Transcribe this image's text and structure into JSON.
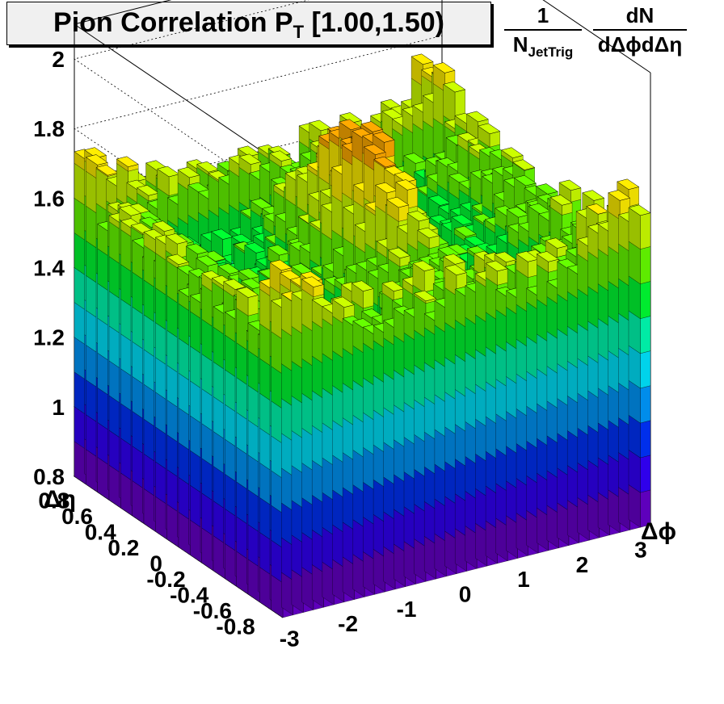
{
  "title": {
    "main": "Pion Correlation P",
    "sub": "T",
    "range": "[1.00,1.50)"
  },
  "zaxis_label": {
    "frac1_num": "1",
    "frac1_den_main": "N",
    "frac1_den_sub": "JetTrig",
    "frac2_num": "dN",
    "frac2_den": "dΔϕdΔη"
  },
  "chart_data": {
    "type": "lego-3d",
    "title": "Pion Correlation P_T [1.00,1.50)",
    "xlabel": "Δϕ",
    "ylabel": "Δη",
    "zlabel": "1/N_JetTrig dN/dΔϕdΔη",
    "x_range": [
      -3.14,
      3.14
    ],
    "y_range": [
      -0.9,
      0.9
    ],
    "zlim": [
      0.8,
      2.1
    ],
    "x_bins": 36,
    "y_bins": 18,
    "x_ticks": [
      "-3",
      "-2",
      "-1",
      "0",
      "1",
      "2",
      "3"
    ],
    "y_ticks": [
      "-0.8",
      "-0.6",
      "-0.4",
      "-0.2",
      "0",
      "0.2",
      "0.4",
      "0.6",
      "0.8"
    ],
    "z_ticks": [
      "0.8",
      "1",
      "1.2",
      "1.4",
      "1.6",
      "1.8",
      "2"
    ],
    "description_values": {
      "baseline": 1.45,
      "near_side_peak": {
        "dphi": 0.0,
        "deta": 0.0,
        "height": 1.85
      },
      "away_side_ridge": {
        "dphi": 3.14,
        "height": 1.6
      },
      "edge_deta_value": 1.62
    },
    "colors": [
      "#6600cc",
      "#3300ff",
      "#0033ff",
      "#0099ff",
      "#00e5ff",
      "#00ffb3",
      "#00ff33",
      "#66ff00",
      "#ccff00",
      "#ffee00",
      "#ffaa00",
      "#ff5500",
      "#ff0000"
    ]
  }
}
